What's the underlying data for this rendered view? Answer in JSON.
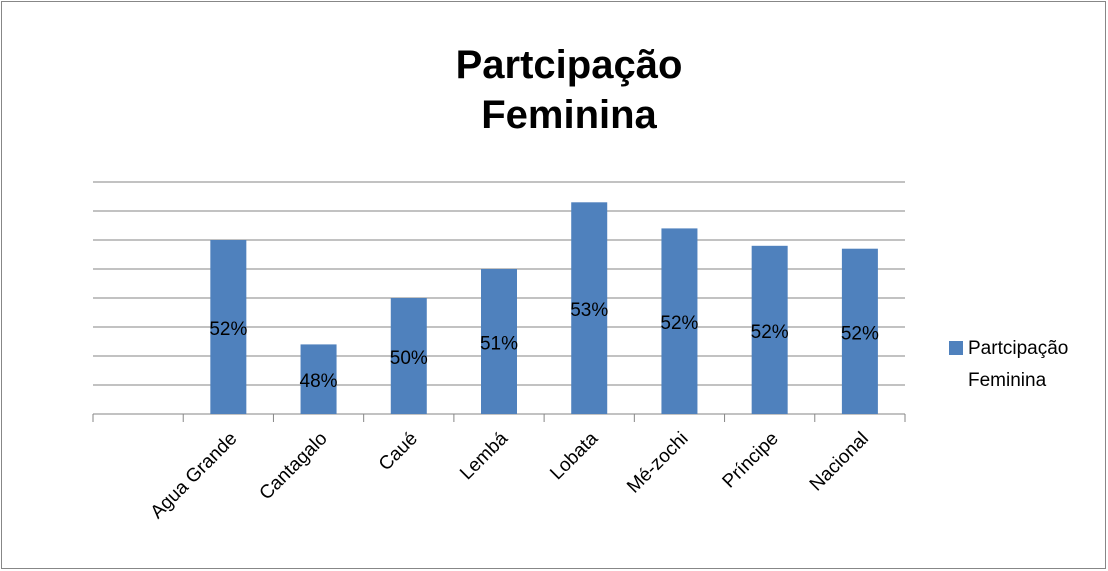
{
  "chart_data": {
    "type": "bar",
    "title": "Partcipação Feminina",
    "categories": [
      null,
      "Agua Grande",
      "Cantagalo",
      "Caué",
      "Lembá",
      "Lobata",
      "Mé-zochi",
      "Príncipe",
      "Nacional"
    ],
    "series": [
      {
        "name": "Partcipação Feminina",
        "color": "#4f81bd",
        "values": [
          null,
          52.0,
          48.4,
          50.0,
          51.0,
          53.3,
          52.4,
          51.8,
          51.7
        ],
        "value_labels": [
          null,
          "52%",
          "48%",
          "50%",
          "51%",
          "53%",
          "52%",
          "52%",
          "52%"
        ]
      }
    ],
    "ylim": [
      46,
      54
    ],
    "yticks": [
      46,
      47,
      48,
      49,
      50,
      51,
      52,
      53,
      54
    ],
    "grid": true,
    "legend": "right"
  }
}
